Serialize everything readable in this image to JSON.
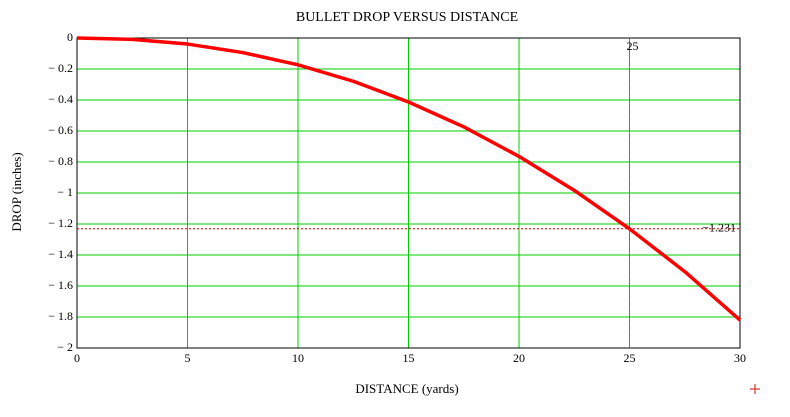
{
  "chart_data": {
    "type": "line",
    "title": "BULLET DROP VERSUS DISTANCE",
    "x_label": "DISTANCE (yards)",
    "y_label": "DROP (inches)",
    "x": [
      0,
      2.5,
      5,
      7.5,
      10,
      12.5,
      15,
      17.5,
      20,
      22.5,
      25,
      27.5,
      30
    ],
    "series": [
      {
        "color": "#ff0000",
        "values": [
          0,
          -0.009,
          -0.039,
          -0.094,
          -0.173,
          -0.279,
          -0.413,
          -0.573,
          -0.764,
          -0.983,
          -1.231,
          -1.507,
          -1.82
        ]
      }
    ],
    "xlim": [
      0,
      30
    ],
    "ylim": [
      -2,
      0
    ],
    "xticks": [
      0,
      5,
      10,
      15,
      20,
      25,
      30
    ],
    "yticks": [
      0,
      {
        "value": -0.2,
        "label": "− 0.2"
      },
      {
        "value": -0.4,
        "label": "− 0.4"
      },
      {
        "value": -0.6,
        "label": "− 0.6"
      },
      {
        "value": -0.8,
        "label": "− 0.8"
      },
      {
        "value": -1,
        "label": "− 1"
      },
      {
        "value": -1.2,
        "label": "− 1.2"
      },
      {
        "value": -1.4,
        "label": "− 1.4"
      },
      {
        "value": -1.6,
        "label": "− 1.6"
      },
      {
        "value": -1.8,
        "label": "− 1.8"
      },
      {
        "value": -2,
        "label": "− 2"
      }
    ],
    "grid": true,
    "grid_color": "#00cc00",
    "marker_x": 25,
    "marker_y": {
      "value": -1.231,
      "label": "−1.231"
    }
  }
}
